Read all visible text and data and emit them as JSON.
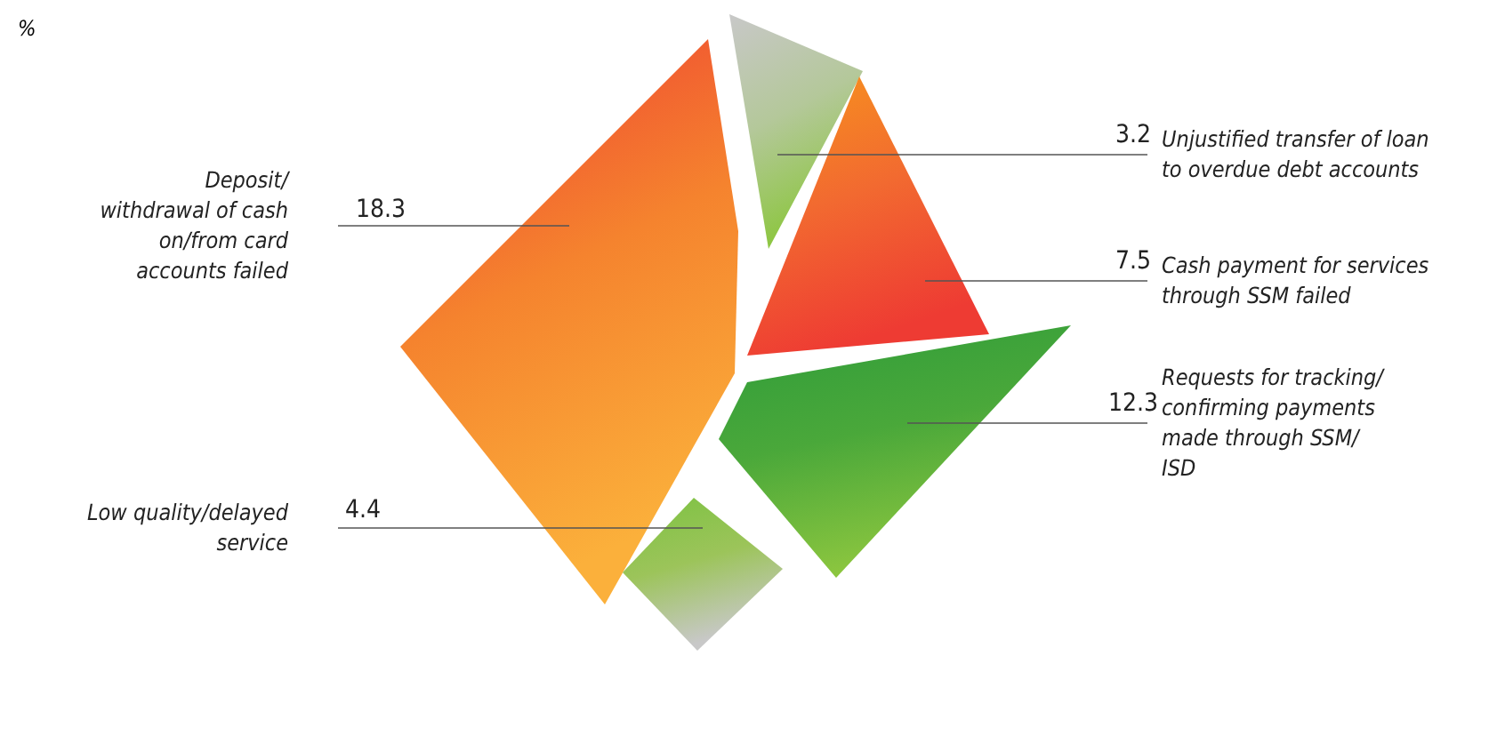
{
  "chart_data": {
    "type": "other",
    "ylabel": "%",
    "categories": [
      "Deposit/\nwithdrawal of cash\non/from card\naccounts failed",
      "Low quality/delayed\nservice",
      "Unjustified transfer of loan\nto overdue debt accounts",
      "Cash payment for services\nthrough SSM failed",
      "Requests for tracking/\nconfirming payments\nmade through SSM/\nISD"
    ],
    "values": [
      18.3,
      4.4,
      3.2,
      7.5,
      12.3
    ],
    "colors": [
      "#f5832e",
      "#9cc45a",
      "#b4c89a",
      "#f26a30",
      "#4aa83a"
    ],
    "data_labels": true
  }
}
